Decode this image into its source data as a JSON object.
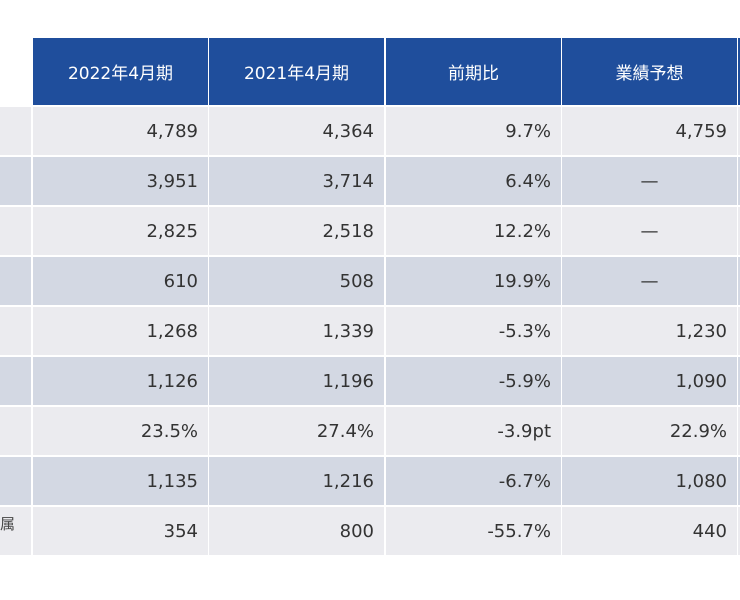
{
  "table": {
    "header": [
      "2022年4月期",
      "2021年4月期",
      "前期比",
      "業績予想"
    ],
    "rows": [
      [
        "4,789",
        "4,364",
        "9.7%",
        "4,759"
      ],
      [
        "3,951",
        "3,714",
        "6.4%",
        "—"
      ],
      [
        "2,825",
        "2,518",
        "12.2%",
        "—"
      ],
      [
        "610",
        "508",
        "19.9%",
        "—"
      ],
      [
        "1,268",
        "1,339",
        "-5.3%",
        "1,230"
      ],
      [
        "1,126",
        "1,196",
        "-5.9%",
        "1,090"
      ],
      [
        "23.5%",
        "27.4%",
        "-3.9pt",
        "22.9%"
      ],
      [
        "1,135",
        "1,216",
        "-6.7%",
        "1,080"
      ],
      [
        "354",
        "800",
        "-55.7%",
        "440"
      ]
    ],
    "cut_label": "属"
  }
}
